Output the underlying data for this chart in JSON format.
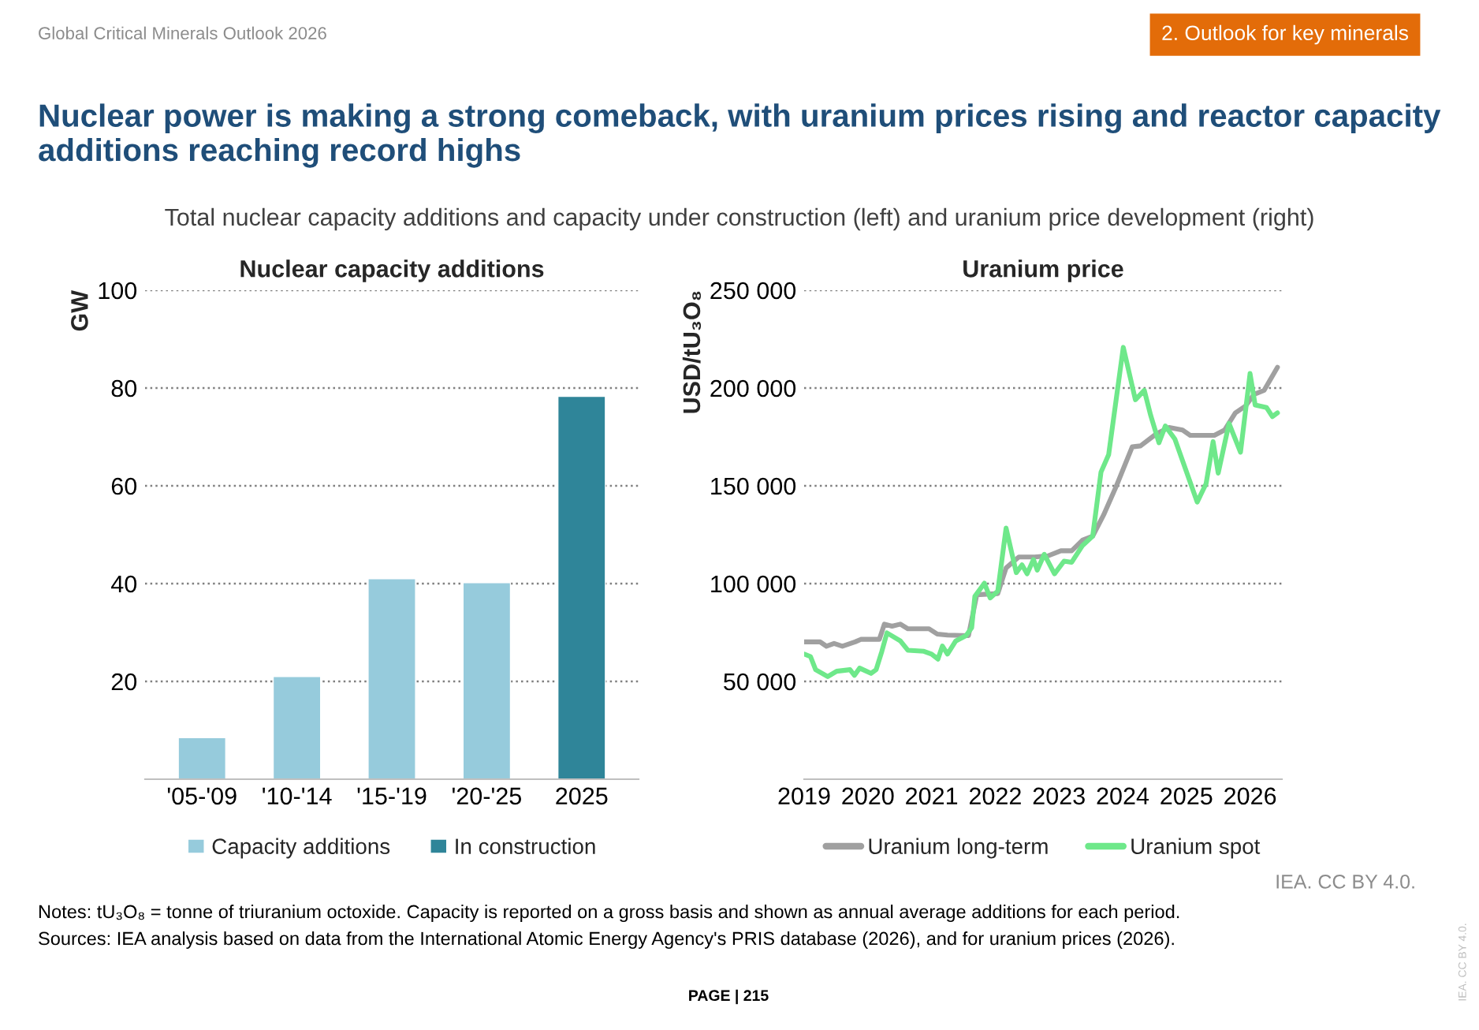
{
  "chart_data": [
    {
      "type": "bar",
      "title": "Nuclear capacity additions",
      "ylabel": "GW",
      "stacked": true,
      "categories": [
        "'05-'09",
        "'10-'14",
        "'15-'19",
        "'20-'25",
        "2025"
      ],
      "series": [
        {
          "name": "Capacity additions",
          "color": "#96cbdc",
          "values": [
            8.5,
            21,
            41,
            40.2,
            null
          ]
        },
        {
          "name": "In construction",
          "color": "#2f8599",
          "values": [
            null,
            null,
            null,
            null,
            78.3
          ]
        }
      ],
      "ylim": [
        0,
        100
      ],
      "yticks": [
        20,
        40,
        60,
        80,
        100
      ],
      "grid": "y",
      "legend": "bottom",
      "annotations": [
        "Global Critical Minerals Outlook 2026",
        "2. Outlook for key minerals",
        "Nuclear power is making a strong comeback, with uranium prices rising and reactor capacity additions reaching record highs",
        "Total nuclear capacity additions and capacity under construction (left) and uranium price development (right)",
        "IEA. CC BY 4.0.",
        "Notes: tU₃O₈ = tonne of triuranium octoxide. Capacity is reported on a gross basis and shown as annual average additions for each period.",
        "Sources: IEA analysis based on data from the International Atomic Energy Agency's PRIS database (2026), and for uranium prices (2026).",
        "PAGE | 215",
        "IEA. CC BY 4.0."
      ]
    },
    {
      "type": "line",
      "title": "Uranium price",
      "ylabel": "USD/tU₃O₈",
      "series": [
        {
          "name": "Uranium long-term",
          "color": "#a0a0a0",
          "x": [
            2019.0,
            2019.25,
            2019.35,
            2019.47,
            2019.6,
            2019.8,
            2019.89,
            2020.18,
            2020.26,
            2020.38,
            2020.51,
            2020.63,
            2020.96,
            2021.09,
            2021.25,
            2021.58,
            2021.71,
            2022.04,
            2022.17,
            2022.37,
            2022.62,
            2022.83,
            2023.03,
            2023.2,
            2023.37,
            2023.53,
            2023.7,
            2023.9,
            2024.15,
            2024.28,
            2024.53,
            2024.73,
            2024.94,
            2025.06,
            2025.44,
            2025.6,
            2025.77,
            2025.93,
            2026.06,
            2026.22,
            2026.43
          ],
          "values": [
            70200,
            70200,
            68000,
            69400,
            68000,
            70200,
            71500,
            71500,
            79300,
            78200,
            79300,
            76900,
            76900,
            74200,
            73700,
            73400,
            94300,
            94900,
            108000,
            113600,
            113600,
            114200,
            116800,
            116800,
            122200,
            124300,
            135000,
            149800,
            169900,
            170400,
            176600,
            179800,
            178500,
            175800,
            175800,
            178500,
            187300,
            190800,
            196700,
            198800,
            210600
          ]
        },
        {
          "name": "Uranium spot",
          "color": "#6ee88a",
          "x": [
            2019.0,
            2019.1,
            2019.18,
            2019.37,
            2019.51,
            2019.72,
            2019.79,
            2019.87,
            2020.05,
            2020.13,
            2020.22,
            2020.3,
            2020.51,
            2020.63,
            2020.88,
            2021.0,
            2021.1,
            2021.17,
            2021.25,
            2021.38,
            2021.54,
            2021.63,
            2021.68,
            2021.83,
            2021.92,
            2022.04,
            2022.17,
            2022.33,
            2022.42,
            2022.5,
            2022.6,
            2022.66,
            2022.77,
            2022.93,
            2023.08,
            2023.2,
            2023.37,
            2023.53,
            2023.66,
            2023.78,
            2024.01,
            2024.2,
            2024.34,
            2024.44,
            2024.57,
            2024.67,
            2024.82,
            2025.17,
            2025.31,
            2025.42,
            2025.5,
            2025.67,
            2025.85,
            2026.0,
            2026.08,
            2026.26,
            2026.35,
            2026.43
          ],
          "values": [
            64000,
            62700,
            56000,
            52500,
            55200,
            56000,
            53100,
            56800,
            54100,
            56000,
            65400,
            74800,
            70700,
            65900,
            65400,
            64000,
            61400,
            68100,
            64000,
            70700,
            73400,
            77400,
            93500,
            100200,
            92700,
            96200,
            128400,
            105600,
            109600,
            105000,
            112300,
            106900,
            115000,
            105000,
            111500,
            110900,
            119500,
            124300,
            157000,
            165900,
            220800,
            194000,
            198800,
            186000,
            172000,
            180600,
            173900,
            141700,
            151100,
            172600,
            156500,
            181900,
            167200,
            207400,
            191300,
            190000,
            185400,
            187300
          ]
        }
      ],
      "xlim": [
        2019,
        2026.5
      ],
      "xticks": [
        2019,
        2020,
        2021,
        2022,
        2023,
        2024,
        2025,
        2026
      ],
      "ylim": [
        0,
        250000
      ],
      "yticks": [
        {
          "value": 50000,
          "label": "50 000"
        },
        {
          "value": 100000,
          "label": "100 000"
        },
        {
          "value": 150000,
          "label": "150 000"
        },
        {
          "value": 200000,
          "label": "200 000"
        },
        {
          "value": 250000,
          "label": "250 000"
        }
      ],
      "grid": "y",
      "legend": "bottom"
    }
  ]
}
